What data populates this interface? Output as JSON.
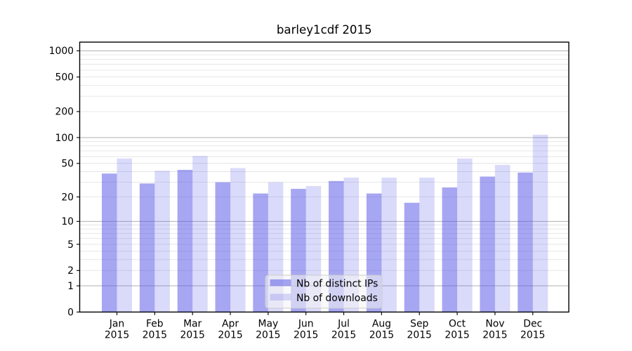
{
  "chart_data": {
    "type": "bar",
    "title": "barley1cdf 2015",
    "categories": [
      "Jan 2015",
      "Feb 2015",
      "Mar 2015",
      "Apr 2015",
      "May 2015",
      "Jun 2015",
      "Jul 2015",
      "Aug 2015",
      "Sep 2015",
      "Oct 2015",
      "Nov 2015",
      "Dec 2015"
    ],
    "months": [
      "Jan",
      "Feb",
      "Mar",
      "Apr",
      "May",
      "Jun",
      "Jul",
      "Aug",
      "Sep",
      "Oct",
      "Nov",
      "Dec"
    ],
    "year": "2015",
    "series": [
      {
        "name": "Nb of distinct IPs",
        "values": [
          38,
          29,
          42,
          30,
          22,
          25,
          31,
          22,
          17,
          26,
          35,
          39
        ],
        "color": "#a7a7f0",
        "base_color": "#5555e6",
        "fill_opacity": 0.52
      },
      {
        "name": "Nb of downloads",
        "values": [
          57,
          41,
          61,
          44,
          30,
          27,
          34,
          34,
          34,
          57,
          48,
          108
        ],
        "color": "#d9d9f7",
        "base_color": "#5555e6",
        "fill_opacity": 0.22
      }
    ],
    "y_ticks": [
      0,
      1,
      2,
      5,
      10,
      20,
      50,
      100,
      200,
      500,
      1000
    ],
    "y_scale": "log1p",
    "ylim": [
      0,
      1260
    ],
    "xlabel": "",
    "ylabel": "",
    "grid": true,
    "legend_position": "lower center"
  },
  "colors": {
    "background": "#ffffff",
    "axis": "#000000",
    "grid_major": "#b0b0b0",
    "grid_minor": "#e4e4e4",
    "legend_bg": "#f4f4f4",
    "legend_border": "#cccccc",
    "text": "#000000"
  }
}
